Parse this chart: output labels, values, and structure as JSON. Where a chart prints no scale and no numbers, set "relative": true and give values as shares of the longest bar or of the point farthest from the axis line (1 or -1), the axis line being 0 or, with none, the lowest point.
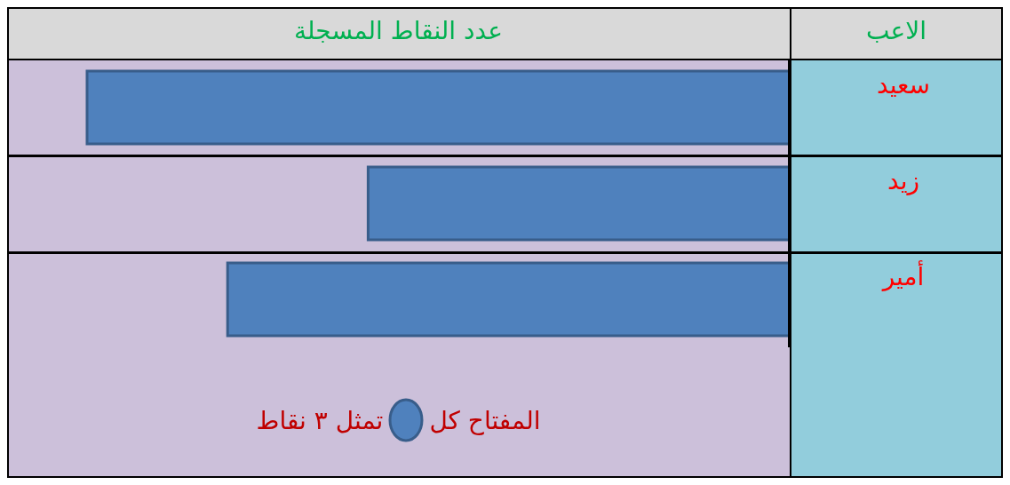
{
  "chart_data": {
    "type": "bar",
    "orientation": "horizontal",
    "relative": true,
    "title": "عدد النقاط المسجلة",
    "ylabel": "الاعب",
    "categories": [
      "سعيد",
      "زيد",
      "أمير"
    ],
    "series": [
      {
        "color": "#4f81bd",
        "values": [
          1,
          0.6,
          0.8
        ]
      }
    ],
    "annotations": [
      "المفتاح كل",
      "تمثل ٣ نقاط"
    ]
  }
}
